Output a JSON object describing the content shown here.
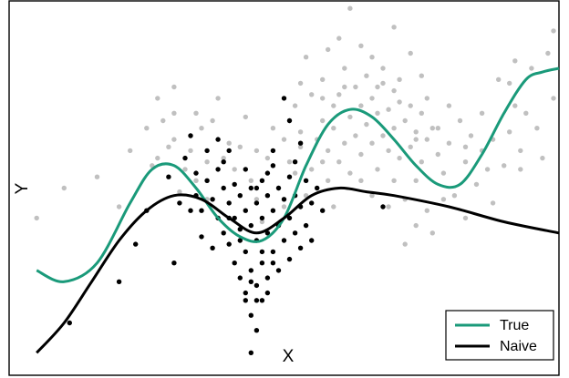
{
  "chart_data": {
    "type": "scatter",
    "title": "",
    "xlabel": "X",
    "ylabel": "Y",
    "xlim": [
      0,
      1
    ],
    "ylim": [
      0,
      1
    ],
    "grid": false,
    "legend_position": "bottom-right",
    "colors": {
      "true": "#1a9a7a",
      "naive": "#000000",
      "gray_points": "#c0c0c0",
      "black_points": "#000000"
    },
    "scatter_series": [
      {
        "name": "",
        "color": "#c0c0c0",
        "points": [
          [
            0.05,
            0.42
          ],
          [
            0.1,
            0.5
          ],
          [
            0.16,
            0.53
          ],
          [
            0.2,
            0.45
          ],
          [
            0.22,
            0.6
          ],
          [
            0.25,
            0.66
          ],
          [
            0.26,
            0.56
          ],
          [
            0.27,
            0.58
          ],
          [
            0.28,
            0.68
          ],
          [
            0.29,
            0.61
          ],
          [
            0.3,
            0.63
          ],
          [
            0.31,
            0.49
          ],
          [
            0.32,
            0.55
          ],
          [
            0.33,
            0.64
          ],
          [
            0.34,
            0.52
          ],
          [
            0.36,
            0.57
          ],
          [
            0.36,
            0.47
          ],
          [
            0.37,
            0.68
          ],
          [
            0.38,
            0.74
          ],
          [
            0.39,
            0.58
          ],
          [
            0.4,
            0.62
          ],
          [
            0.41,
            0.55
          ],
          [
            0.43,
            0.69
          ],
          [
            0.44,
            0.52
          ],
          [
            0.45,
            0.47
          ],
          [
            0.46,
            0.41
          ],
          [
            0.47,
            0.58
          ],
          [
            0.48,
            0.66
          ],
          [
            0.49,
            0.5
          ],
          [
            0.5,
            0.63
          ],
          [
            0.51,
            0.57
          ],
          [
            0.52,
            0.72
          ],
          [
            0.53,
            0.61
          ],
          [
            0.53,
            0.65
          ],
          [
            0.54,
            0.48
          ],
          [
            0.55,
            0.75
          ],
          [
            0.55,
            0.55
          ],
          [
            0.56,
            0.63
          ],
          [
            0.57,
            0.79
          ],
          [
            0.57,
            0.68
          ],
          [
            0.58,
            0.6
          ],
          [
            0.58,
            0.52
          ],
          [
            0.59,
            0.72
          ],
          [
            0.59,
            0.66
          ],
          [
            0.6,
            0.75
          ],
          [
            0.6,
            0.57
          ],
          [
            0.61,
            0.82
          ],
          [
            0.61,
            0.62
          ],
          [
            0.62,
            0.69
          ],
          [
            0.62,
            0.54
          ],
          [
            0.63,
            0.77
          ],
          [
            0.63,
            0.64
          ],
          [
            0.64,
            0.72
          ],
          [
            0.64,
            0.59
          ],
          [
            0.65,
            0.8
          ],
          [
            0.65,
            0.67
          ],
          [
            0.66,
            0.74
          ],
          [
            0.66,
            0.62
          ],
          [
            0.67,
            0.7
          ],
          [
            0.67,
            0.55
          ],
          [
            0.68,
            0.78
          ],
          [
            0.68,
            0.64
          ],
          [
            0.69,
            0.71
          ],
          [
            0.69,
            0.6
          ],
          [
            0.7,
            0.76
          ],
          [
            0.7,
            0.66
          ],
          [
            0.71,
            0.73
          ],
          [
            0.71,
            0.58
          ],
          [
            0.72,
            0.68
          ],
          [
            0.72,
            0.47
          ],
          [
            0.73,
            0.72
          ],
          [
            0.73,
            0.61
          ],
          [
            0.74,
            0.65
          ],
          [
            0.74,
            0.52
          ],
          [
            0.75,
            0.7
          ],
          [
            0.75,
            0.57
          ],
          [
            0.76,
            0.63
          ],
          [
            0.76,
            0.44
          ],
          [
            0.77,
            0.66
          ],
          [
            0.78,
            0.59
          ],
          [
            0.79,
            0.54
          ],
          [
            0.8,
            0.62
          ],
          [
            0.81,
            0.48
          ],
          [
            0.82,
            0.68
          ],
          [
            0.83,
            0.57
          ],
          [
            0.84,
            0.64
          ],
          [
            0.85,
            0.51
          ],
          [
            0.86,
            0.6
          ],
          [
            0.87,
            0.55
          ],
          [
            0.88,
            0.63
          ],
          [
            0.89,
            0.79
          ],
          [
            0.9,
            0.56
          ],
          [
            0.91,
            0.65
          ],
          [
            0.92,
            0.72
          ],
          [
            0.93,
            0.6
          ],
          [
            0.94,
            0.7
          ],
          [
            0.95,
            0.82
          ],
          [
            0.97,
            0.58
          ],
          [
            0.99,
            0.74
          ],
          [
            0.88,
            0.46
          ],
          [
            0.62,
            0.98
          ],
          [
            0.7,
            0.93
          ],
          [
            0.58,
            0.87
          ],
          [
            0.54,
            0.85
          ],
          [
            0.64,
            0.88
          ],
          [
            0.73,
            0.86
          ],
          [
            0.66,
            0.85
          ],
          [
            0.6,
            0.9
          ],
          [
            0.68,
            0.82
          ],
          [
            0.75,
            0.8
          ],
          [
            0.33,
            0.6
          ],
          [
            0.35,
            0.66
          ],
          [
            0.42,
            0.61
          ],
          [
            0.5,
            0.45
          ],
          [
            0.52,
            0.54
          ],
          [
            0.56,
            0.5
          ],
          [
            0.59,
            0.45
          ],
          [
            0.66,
            0.48
          ],
          [
            0.69,
            0.45
          ],
          [
            0.74,
            0.4
          ],
          [
            0.77,
            0.38
          ],
          [
            0.72,
            0.35
          ],
          [
            0.45,
            0.6
          ],
          [
            0.51,
            0.68
          ],
          [
            0.57,
            0.57
          ],
          [
            0.64,
            0.52
          ],
          [
            0.7,
            0.52
          ],
          [
            0.79,
            0.47
          ],
          [
            0.83,
            0.42
          ],
          [
            0.86,
            0.7
          ],
          [
            0.91,
            0.78
          ],
          [
            0.93,
            0.55
          ],
          [
            0.96,
            0.66
          ],
          [
            0.99,
            0.92
          ],
          [
            0.98,
            0.86
          ],
          [
            0.92,
            0.84
          ],
          [
            0.27,
            0.74
          ],
          [
            0.3,
            0.77
          ],
          [
            0.34,
            0.7
          ],
          [
            0.3,
            0.7
          ],
          [
            0.53,
            0.78
          ],
          [
            0.57,
            0.74
          ],
          [
            0.61,
            0.77
          ],
          [
            0.67,
            0.77
          ],
          [
            0.71,
            0.79
          ],
          [
            0.76,
            0.74
          ],
          [
            0.8,
            0.72
          ],
          [
            0.83,
            0.61
          ],
          [
            0.74,
            0.63
          ],
          [
            0.78,
            0.66
          ]
        ]
      },
      {
        "name": "",
        "color": "#000000",
        "points": [
          [
            0.11,
            0.14
          ],
          [
            0.2,
            0.25
          ],
          [
            0.23,
            0.35
          ],
          [
            0.25,
            0.44
          ],
          [
            0.29,
            0.53
          ],
          [
            0.3,
            0.3
          ],
          [
            0.31,
            0.46
          ],
          [
            0.32,
            0.58
          ],
          [
            0.33,
            0.64
          ],
          [
            0.34,
            0.54
          ],
          [
            0.35,
            0.44
          ],
          [
            0.35,
            0.37
          ],
          [
            0.36,
            0.52
          ],
          [
            0.37,
            0.47
          ],
          [
            0.37,
            0.34
          ],
          [
            0.38,
            0.55
          ],
          [
            0.38,
            0.42
          ],
          [
            0.39,
            0.5
          ],
          [
            0.39,
            0.38
          ],
          [
            0.4,
            0.6
          ],
          [
            0.4,
            0.46
          ],
          [
            0.4,
            0.35
          ],
          [
            0.41,
            0.51
          ],
          [
            0.41,
            0.42
          ],
          [
            0.41,
            0.3
          ],
          [
            0.42,
            0.48
          ],
          [
            0.42,
            0.39
          ],
          [
            0.42,
            0.26
          ],
          [
            0.43,
            0.55
          ],
          [
            0.43,
            0.44
          ],
          [
            0.43,
            0.33
          ],
          [
            0.43,
            0.2
          ],
          [
            0.44,
            0.5
          ],
          [
            0.44,
            0.4
          ],
          [
            0.44,
            0.28
          ],
          [
            0.44,
            0.16
          ],
          [
            0.45,
            0.46
          ],
          [
            0.45,
            0.36
          ],
          [
            0.45,
            0.24
          ],
          [
            0.45,
            0.12
          ],
          [
            0.46,
            0.52
          ],
          [
            0.46,
            0.42
          ],
          [
            0.46,
            0.3
          ],
          [
            0.46,
            0.2
          ],
          [
            0.47,
            0.48
          ],
          [
            0.47,
            0.38
          ],
          [
            0.47,
            0.26
          ],
          [
            0.48,
            0.56
          ],
          [
            0.48,
            0.44
          ],
          [
            0.48,
            0.33
          ],
          [
            0.49,
            0.5
          ],
          [
            0.49,
            0.4
          ],
          [
            0.49,
            0.28
          ],
          [
            0.5,
            0.47
          ],
          [
            0.5,
            0.36
          ],
          [
            0.51,
            0.53
          ],
          [
            0.51,
            0.42
          ],
          [
            0.51,
            0.31
          ],
          [
            0.52,
            0.48
          ],
          [
            0.52,
            0.38
          ],
          [
            0.53,
            0.45
          ],
          [
            0.53,
            0.34
          ],
          [
            0.54,
            0.52
          ],
          [
            0.54,
            0.4
          ],
          [
            0.55,
            0.46
          ],
          [
            0.55,
            0.36
          ],
          [
            0.56,
            0.5
          ],
          [
            0.57,
            0.44
          ],
          [
            0.5,
            0.74
          ],
          [
            0.51,
            0.68
          ],
          [
            0.48,
            0.6
          ],
          [
            0.38,
            0.63
          ],
          [
            0.39,
            0.57
          ],
          [
            0.36,
            0.6
          ],
          [
            0.45,
            0.5
          ],
          [
            0.47,
            0.54
          ],
          [
            0.52,
            0.57
          ],
          [
            0.53,
            0.62
          ],
          [
            0.46,
            0.33
          ],
          [
            0.44,
            0.25
          ],
          [
            0.43,
            0.22
          ],
          [
            0.45,
            0.2
          ],
          [
            0.47,
            0.22
          ],
          [
            0.44,
            0.06
          ],
          [
            0.68,
            0.45
          ],
          [
            0.33,
            0.44
          ],
          [
            0.34,
            0.48
          ],
          [
            0.42,
            0.36
          ],
          [
            0.4,
            0.42
          ],
          [
            0.48,
            0.3
          ]
        ]
      }
    ],
    "series": [
      {
        "name": "True",
        "color": "#1a9a7a",
        "x": [
          0.05,
          0.1,
          0.16,
          0.22,
          0.26,
          0.3,
          0.34,
          0.38,
          0.42,
          0.46,
          0.5,
          0.54,
          0.58,
          0.62,
          0.66,
          0.7,
          0.74,
          0.78,
          0.82,
          0.86,
          0.9,
          0.94,
          0.97,
          1.0
        ],
        "y": [
          0.28,
          0.25,
          0.3,
          0.46,
          0.55,
          0.56,
          0.5,
          0.42,
          0.37,
          0.36,
          0.42,
          0.56,
          0.67,
          0.71,
          0.69,
          0.63,
          0.56,
          0.51,
          0.51,
          0.59,
          0.7,
          0.79,
          0.81,
          0.82
        ]
      },
      {
        "name": "Naive",
        "color": "#000000",
        "x": [
          0.05,
          0.1,
          0.15,
          0.2,
          0.25,
          0.3,
          0.35,
          0.4,
          0.45,
          0.5,
          0.55,
          0.6,
          0.65,
          0.7,
          0.8,
          0.9,
          1.0
        ],
        "y": [
          0.06,
          0.14,
          0.25,
          0.36,
          0.44,
          0.48,
          0.47,
          0.42,
          0.38,
          0.42,
          0.48,
          0.5,
          0.49,
          0.48,
          0.45,
          0.41,
          0.38
        ]
      }
    ]
  }
}
